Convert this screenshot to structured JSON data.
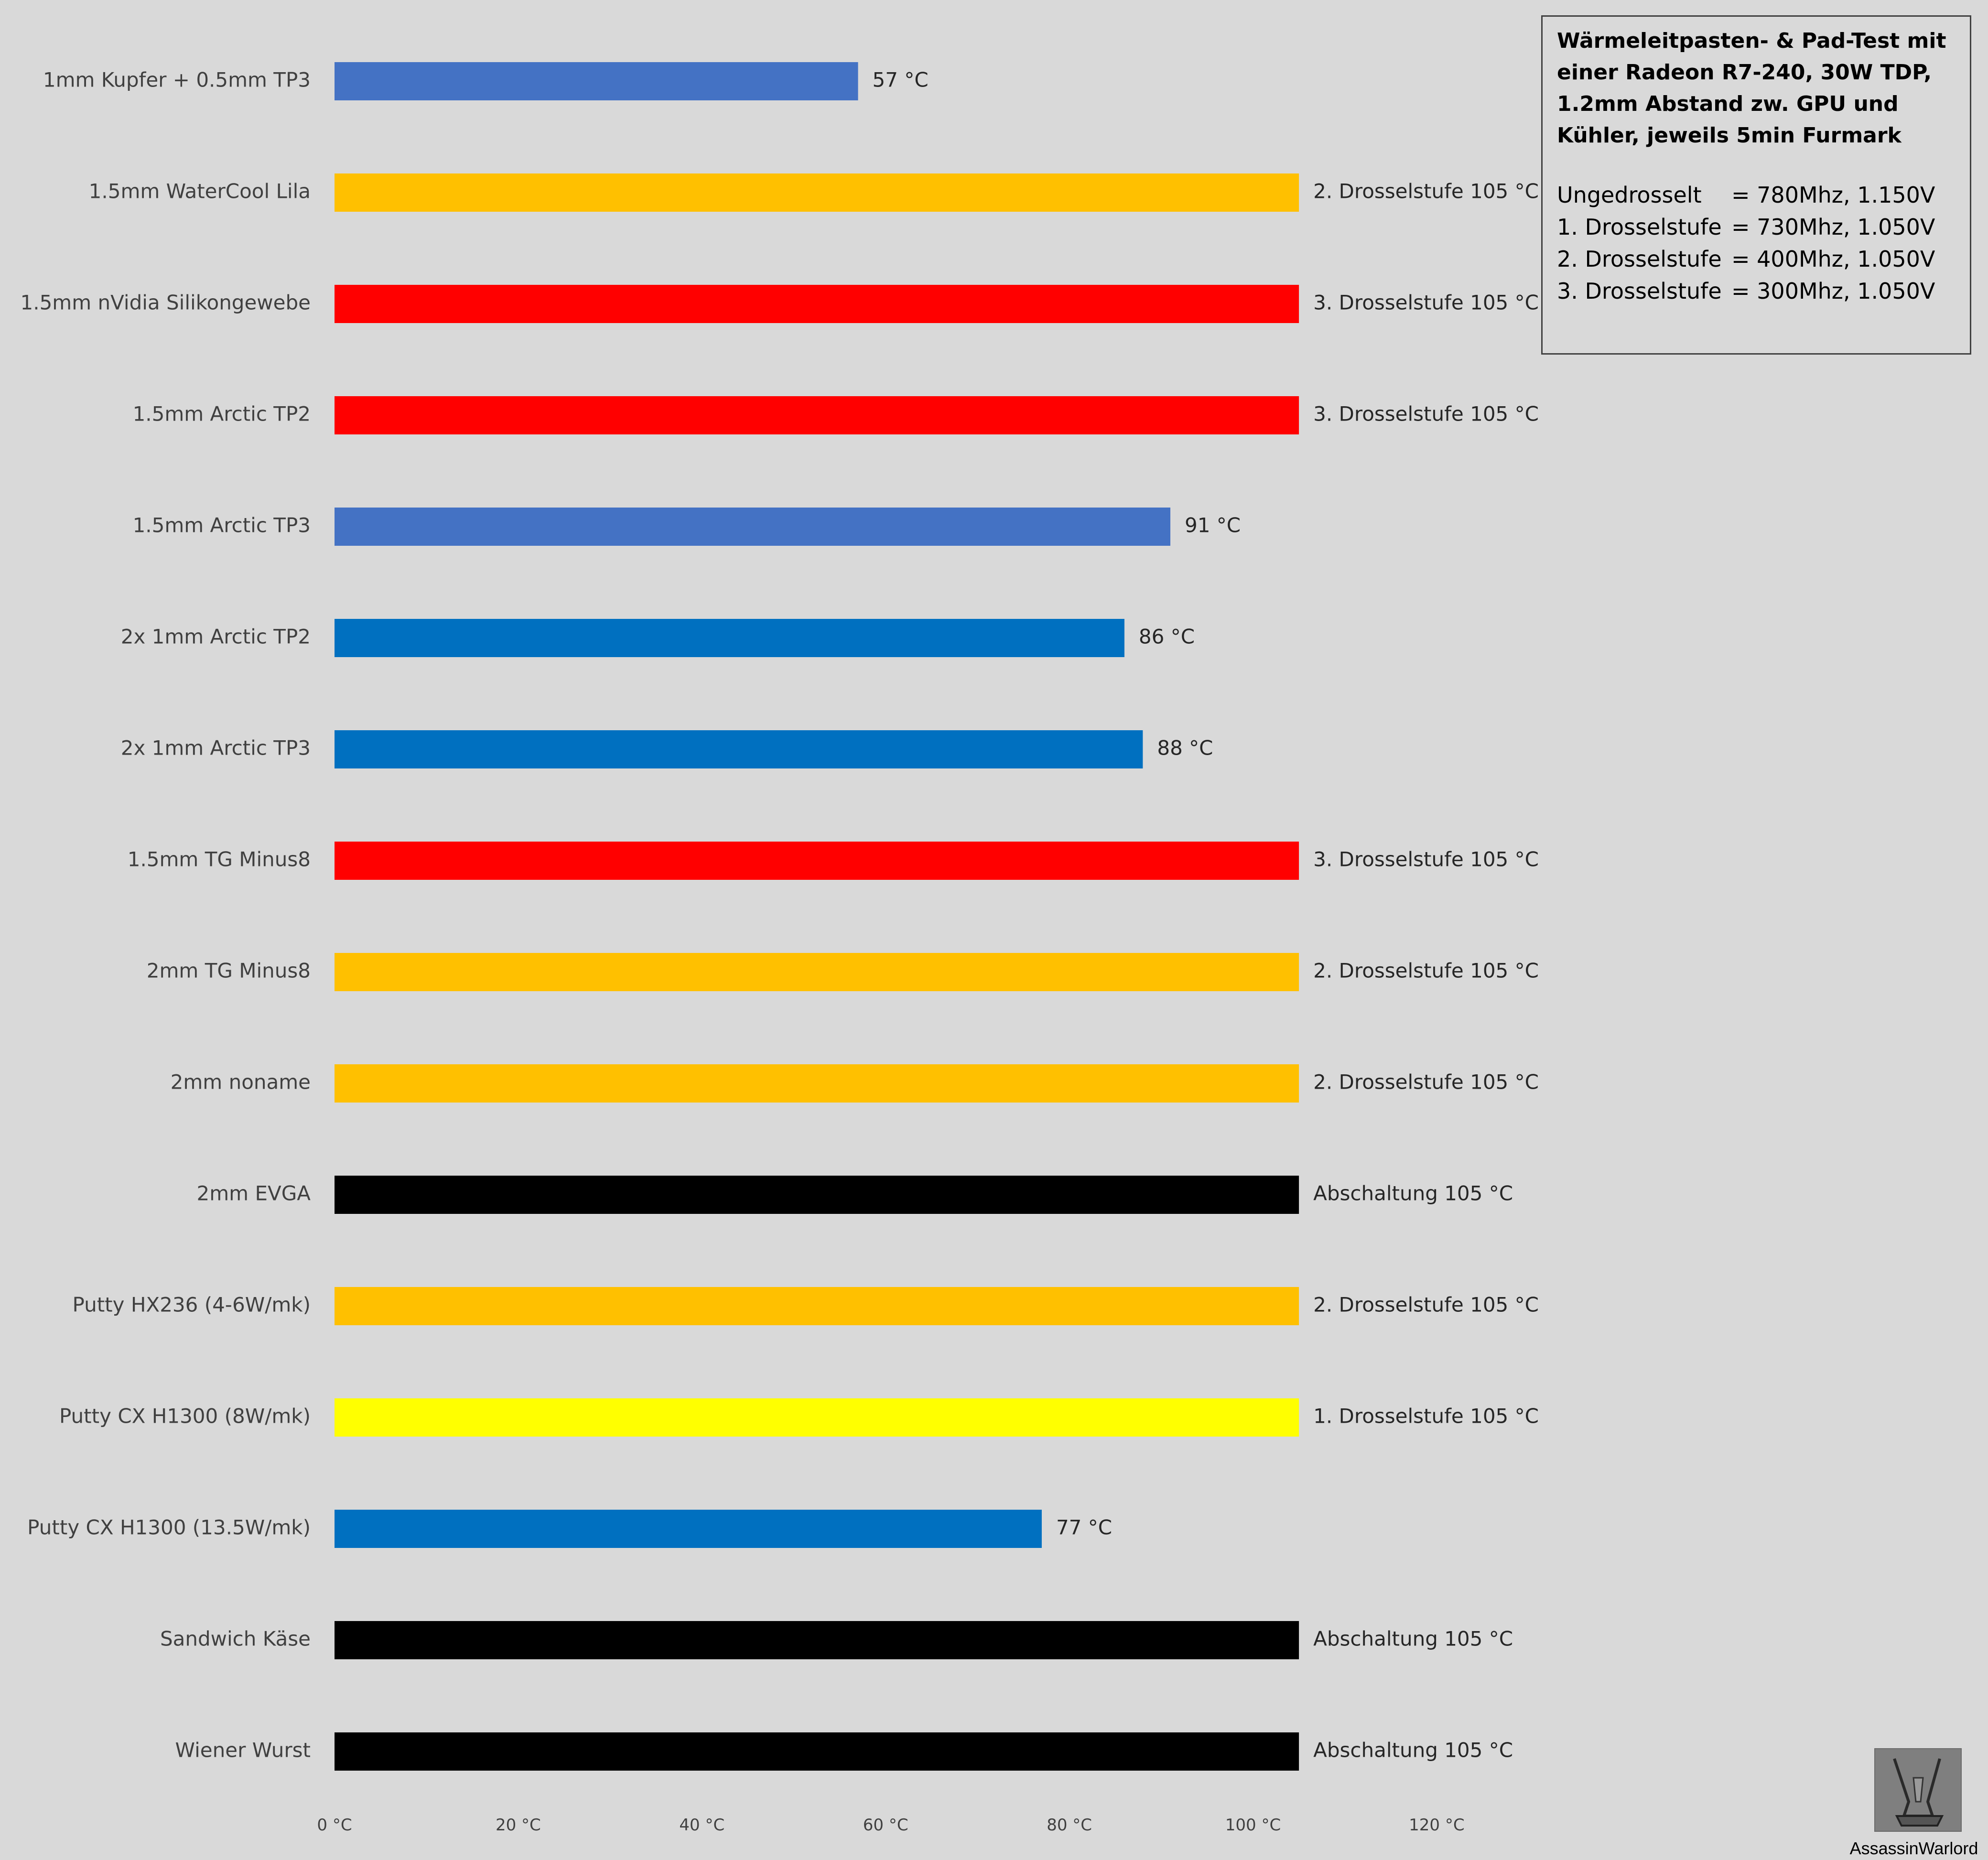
{
  "chart_data": {
    "type": "bar",
    "orientation": "horizontal",
    "title": "",
    "xlabel": "",
    "ylabel": "",
    "xlim": [
      0,
      120
    ],
    "x_ticks": [
      0,
      20,
      40,
      60,
      80,
      100,
      120
    ],
    "x_tick_labels": [
      "0 °C",
      "20 °C",
      "40 °C",
      "60 °C",
      "80 °C",
      "100 °C",
      "120 °C"
    ],
    "grid": false,
    "legend": "none",
    "categories": [
      "1mm Kupfer + 0.5mm TP3",
      "1.5mm WaterCool Lila",
      "1.5mm nVidia Silikongewebe",
      "1.5mm Arctic TP2",
      "1.5mm Arctic TP3",
      "2x 1mm Arctic TP2",
      "2x 1mm Arctic TP3",
      "1.5mm TG Minus8",
      "2mm TG Minus8",
      "2mm noname",
      "2mm EVGA",
      "Putty HX236 (4-6W/mk)",
      "Putty CX H1300 (8W/mk)",
      "Putty CX H1300 (13.5W/mk)",
      "Sandwich Käse",
      "Wiener Wurst"
    ],
    "values": [
      57,
      105,
      105,
      105,
      91,
      86,
      88,
      105,
      105,
      105,
      105,
      105,
      105,
      77,
      105,
      105
    ],
    "data_labels": [
      "57 °C",
      "2. Drosselstufe 105 °C",
      "3. Drosselstufe 105 °C",
      "3. Drosselstufe 105 °C",
      "91 °C",
      "86 °C",
      "88 °C",
      "3. Drosselstufe 105 °C",
      "2. Drosselstufe 105 °C",
      "2. Drosselstufe 105 °C",
      "Abschaltung 105 °C",
      "2. Drosselstufe 105 °C",
      "1. Drosselstufe 105 °C",
      "77 °C",
      "Abschaltung 105 °C",
      "Abschaltung 105 °C"
    ],
    "bar_colors": [
      "#4472c4",
      "#ffc000",
      "#ff0000",
      "#ff0000",
      "#4472c4",
      "#0070c0",
      "#0070c0",
      "#ff0000",
      "#ffc000",
      "#ffc000",
      "#000000",
      "#ffc000",
      "#ffff00",
      "#0070c0",
      "#000000",
      "#000000"
    ]
  },
  "info_box": {
    "title": "Wärmeleitpasten- & Pad-Test mit einer Radeon R7-240, 30W TDP, 1.2mm Abstand zw. GPU und Kühler, jeweils 5min Furmark",
    "rows": [
      {
        "label": "Ungedrosselt",
        "value": "= 780Mhz, 1.150V"
      },
      {
        "label": "1. Drosselstufe",
        "value": "= 730Mhz, 1.050V"
      },
      {
        "label": "2. Drosselstufe",
        "value": "= 400Mhz, 1.050V"
      },
      {
        "label": "3. Drosselstufe",
        "value": "= 300Mhz, 1.050V"
      }
    ]
  },
  "watermark": {
    "caption": "AssassinWarlord"
  },
  "colors": {
    "background": "#d9d9d9",
    "text": "#404040"
  }
}
